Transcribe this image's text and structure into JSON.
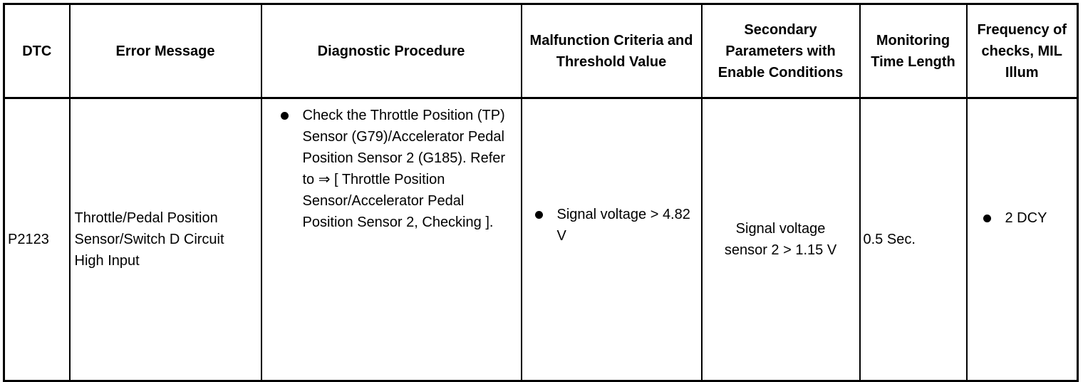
{
  "headers": [
    "DTC",
    "Error Message",
    "Diagnostic Procedure",
    "Malfunction Criteria and Threshold Value",
    "Secondary Parameters with Enable Conditions",
    "Monitoring Time Length",
    "Frequency of checks, MIL Illum"
  ],
  "row": {
    "dtc": "P2123",
    "error_message": "Throttle/Pedal Position Sensor/Switch D Circuit High Input",
    "procedure_text": "Check the Throttle Position (TP) Sensor (G79)/Accelerator Pedal Position Sensor 2 (G185). Refer to ⇒ [",
    "procedure_link": "Throttle Position Sensor/Accelerator Pedal Position Sensor 2, Checking",
    "procedure_end": "].",
    "criteria": "Signal voltage > 4.82 V",
    "secondary": "Signal voltage sensor 2 > 1.15 V",
    "monitoring_time": "0.5 Sec.",
    "frequency": "2 DCY"
  }
}
